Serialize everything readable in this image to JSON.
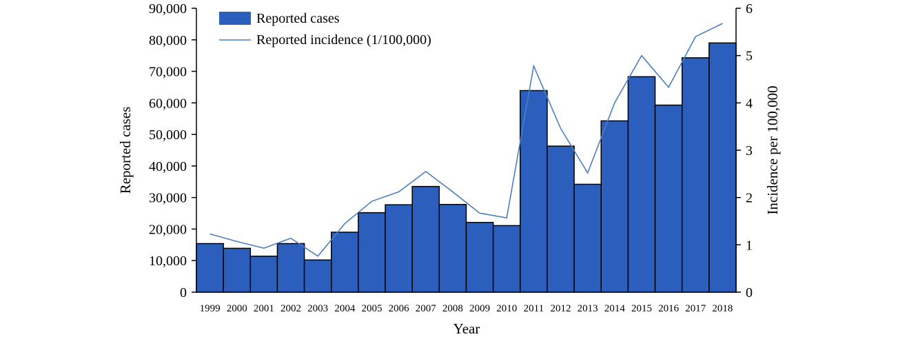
{
  "chart_data": {
    "type": "bar",
    "categories": [
      "1999",
      "2000",
      "2001",
      "2002",
      "2003",
      "2004",
      "2005",
      "2006",
      "2007",
      "2008",
      "2009",
      "2010",
      "2011",
      "2012",
      "2013",
      "2014",
      "2015",
      "2016",
      "2017",
      "2018"
    ],
    "series": [
      {
        "name": "Reported cases",
        "type": "bar",
        "axis": "left",
        "color": "#2c5fbd",
        "values": [
          15400,
          13900,
          11400,
          15400,
          10200,
          19000,
          25200,
          27700,
          33500,
          27800,
          22100,
          21100,
          63900,
          46300,
          34200,
          54300,
          68300,
          59300,
          74300,
          79000
        ]
      },
      {
        "name": "Reported incidence (1/100,000)",
        "type": "line",
        "axis": "right",
        "color": "#4a7fc1",
        "values": [
          1.23,
          1.07,
          0.93,
          1.14,
          0.76,
          1.45,
          1.92,
          2.12,
          2.55,
          2.12,
          1.67,
          1.57,
          4.78,
          3.46,
          2.52,
          4.0,
          5.0,
          4.33,
          5.4,
          5.68
        ]
      }
    ],
    "xlabel": "Year",
    "ylabel": "Reported cases",
    "y2label": "Incidence per 100,000",
    "ylim": [
      0,
      90000
    ],
    "y2lim": [
      0,
      6
    ],
    "yticks": [
      "0",
      "10,000",
      "20,000",
      "30,000",
      "40,000",
      "50,000",
      "60,000",
      "70,000",
      "80,000",
      "90,000"
    ],
    "y2ticks": [
      "0",
      "1",
      "2",
      "3",
      "4",
      "5",
      "6"
    ],
    "legend": {
      "position": "top-left",
      "entries": [
        "Reported cases",
        "Reported incidence (1/100,000)"
      ]
    },
    "grid": false
  }
}
